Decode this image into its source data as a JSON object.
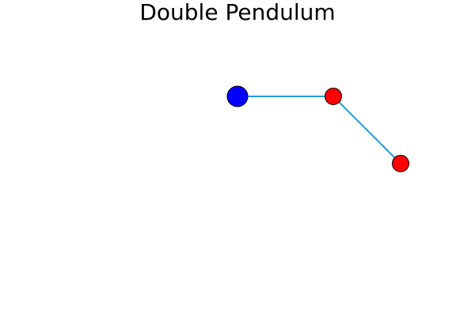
{
  "title": "Double Pendulum",
  "colors": {
    "rod": "#1f9fe6",
    "pivot": "#0000ff",
    "bob": "#ff0000",
    "outline": "#000000"
  }
}
